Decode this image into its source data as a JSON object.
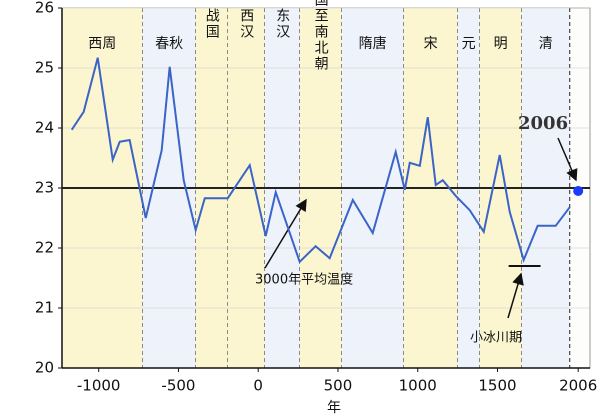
{
  "chart_data": {
    "type": "line",
    "x": [
      -1169,
      -1094,
      -1006,
      -912,
      -868,
      -806,
      -705,
      -605,
      -555,
      -467,
      -392,
      -335,
      -191,
      -53,
      47,
      110,
      260,
      360,
      448,
      593,
      718,
      862,
      919,
      950,
      1013,
      1063,
      1113,
      1157,
      1238,
      1326,
      1414,
      1514,
      1577,
      1664,
      1752,
      1865,
      1953
    ],
    "series": [
      {
        "color": "#3a64c8",
        "values": [
          23.97,
          24.27,
          25.17,
          23.47,
          23.77,
          23.8,
          22.5,
          23.63,
          25.02,
          23.13,
          22.3,
          22.83,
          22.83,
          23.38,
          22.2,
          22.93,
          21.77,
          22.03,
          21.83,
          22.8,
          22.25,
          23.6,
          22.97,
          23.42,
          23.37,
          24.18,
          23.05,
          23.13,
          22.87,
          22.63,
          22.27,
          23.55,
          22.6,
          21.8,
          22.37,
          22.37,
          22.68
        ]
      }
    ],
    "xlim": [
      -1230,
      2080
    ],
    "ylim": [
      20,
      26
    ],
    "xticks": [
      -1000,
      -500,
      0,
      500,
      1000,
      1500,
      2006
    ],
    "yticks": [
      20,
      21,
      22,
      23,
      24,
      25,
      26
    ],
    "x_label": "年",
    "bands": [
      {
        "label": "西周",
        "start": -1230,
        "end": -725,
        "color": "#fbf5d0",
        "vertical": false
      },
      {
        "label": "春秋",
        "start": -725,
        "end": -392,
        "color": "#eef2fa",
        "vertical": false
      },
      {
        "label": "战国",
        "start": -392,
        "end": -191,
        "color": "#fbf5d0",
        "vertical": true
      },
      {
        "label": "西汉",
        "start": -191,
        "end": 41,
        "color": "#fbf5d0",
        "vertical": true
      },
      {
        "label": "东汉",
        "start": 41,
        "end": 260,
        "color": "#eef2fa",
        "vertical": true
      },
      {
        "label": "三国至南北朝",
        "start": 260,
        "end": 523,
        "color": "#fbf5d0",
        "vertical": true
      },
      {
        "label": "隋唐",
        "start": 523,
        "end": 912,
        "color": "#eef2fa",
        "vertical": false
      },
      {
        "label": "宋",
        "start": 912,
        "end": 1250,
        "color": "#fbf5d0",
        "vertical": false
      },
      {
        "label": "元",
        "start": 1250,
        "end": 1388,
        "color": "#eef2fa",
        "vertical": false
      },
      {
        "label": "明",
        "start": 1388,
        "end": 1652,
        "color": "#fbf5d0",
        "vertical": false
      },
      {
        "label": "清",
        "start": 1652,
        "end": 1953,
        "color": "#eef2fa",
        "vertical": false
      }
    ],
    "mean_line": {
      "y": 23,
      "label": "3000年平均温度"
    },
    "ice_age": {
      "x": [
        1570,
        1770
      ],
      "y": 21.7,
      "label": "小冰川期"
    },
    "point_2006": {
      "x": 2006,
      "y": 22.95,
      "label": "2006",
      "color": "#1a3cff"
    }
  }
}
